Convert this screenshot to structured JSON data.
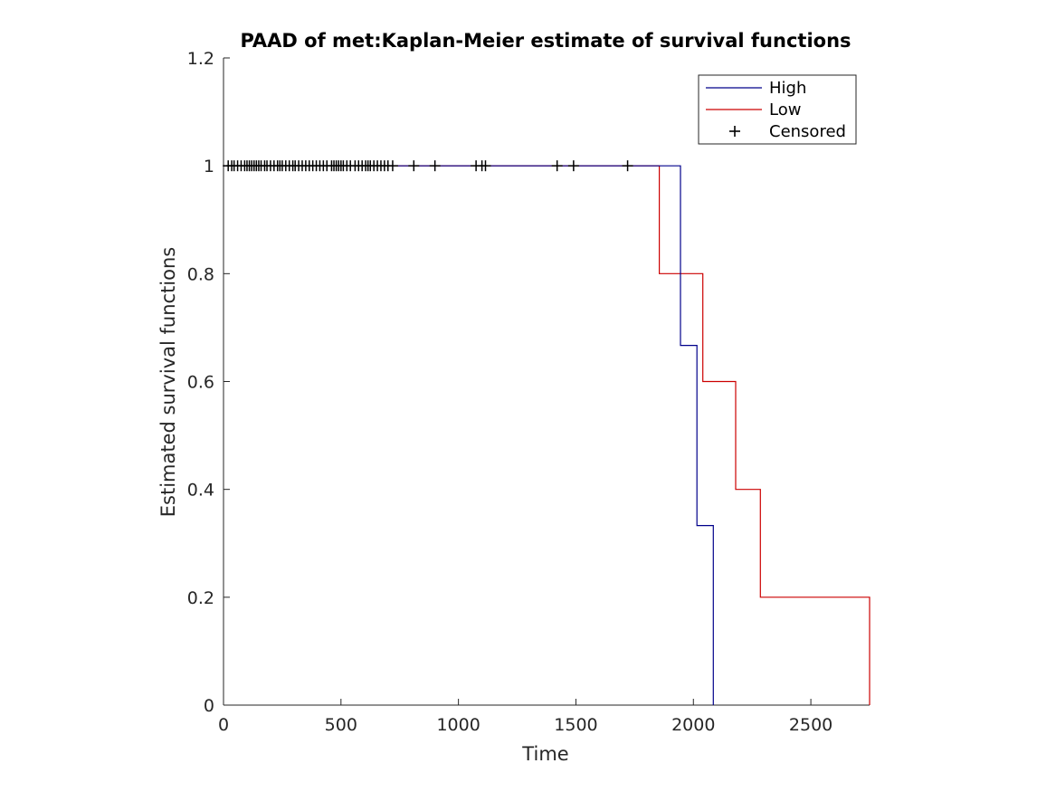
{
  "chart_data": {
    "type": "line",
    "title": "PAAD of met:Kaplan-Meier estimate of survival functions",
    "xlabel": "Time",
    "ylabel": "Estimated survival functions",
    "xlim": [
      0,
      2750
    ],
    "ylim": [
      0,
      1.2
    ],
    "x_ticks": [
      0,
      500,
      1000,
      1500,
      2000,
      2500
    ],
    "x_tick_labels": [
      "0",
      "500",
      "1000",
      "1500",
      "2000",
      "2500"
    ],
    "y_ticks": [
      0,
      0.2,
      0.4,
      0.6,
      0.8,
      1,
      1.2
    ],
    "y_tick_labels": [
      "0",
      "0.2",
      "0.4",
      "0.6",
      "0.8",
      "1",
      "1.2"
    ],
    "grid": false,
    "legend_position": "top-right",
    "series": [
      {
        "name": "High",
        "color": "#00008B",
        "step": true,
        "x": [
          0,
          1945,
          1945,
          2015,
          2015,
          2085,
          2085
        ],
        "y": [
          1,
          1,
          0.667,
          0.667,
          0.333,
          0.333,
          0
        ]
      },
      {
        "name": "Low",
        "color": "#CC0000",
        "step": true,
        "x": [
          0,
          1855,
          1855,
          2040,
          2040,
          2180,
          2180,
          2285,
          2285,
          2750,
          2750
        ],
        "y": [
          1,
          1,
          0.8,
          0.8,
          0.6,
          0.6,
          0.4,
          0.4,
          0.2,
          0.2,
          0
        ]
      }
    ],
    "censored": {
      "name": "Censored",
      "marker": "+",
      "color": "#000000",
      "x": [
        20,
        35,
        45,
        60,
        75,
        90,
        100,
        110,
        120,
        130,
        140,
        150,
        160,
        175,
        185,
        200,
        215,
        230,
        240,
        250,
        265,
        280,
        295,
        305,
        320,
        335,
        350,
        365,
        380,
        395,
        410,
        425,
        440,
        460,
        470,
        480,
        490,
        500,
        510,
        525,
        540,
        560,
        575,
        590,
        605,
        615,
        625,
        640,
        655,
        670,
        685,
        700,
        720,
        810,
        900,
        1075,
        1100,
        1115,
        1420,
        1490,
        1720
      ],
      "y": 1
    }
  }
}
